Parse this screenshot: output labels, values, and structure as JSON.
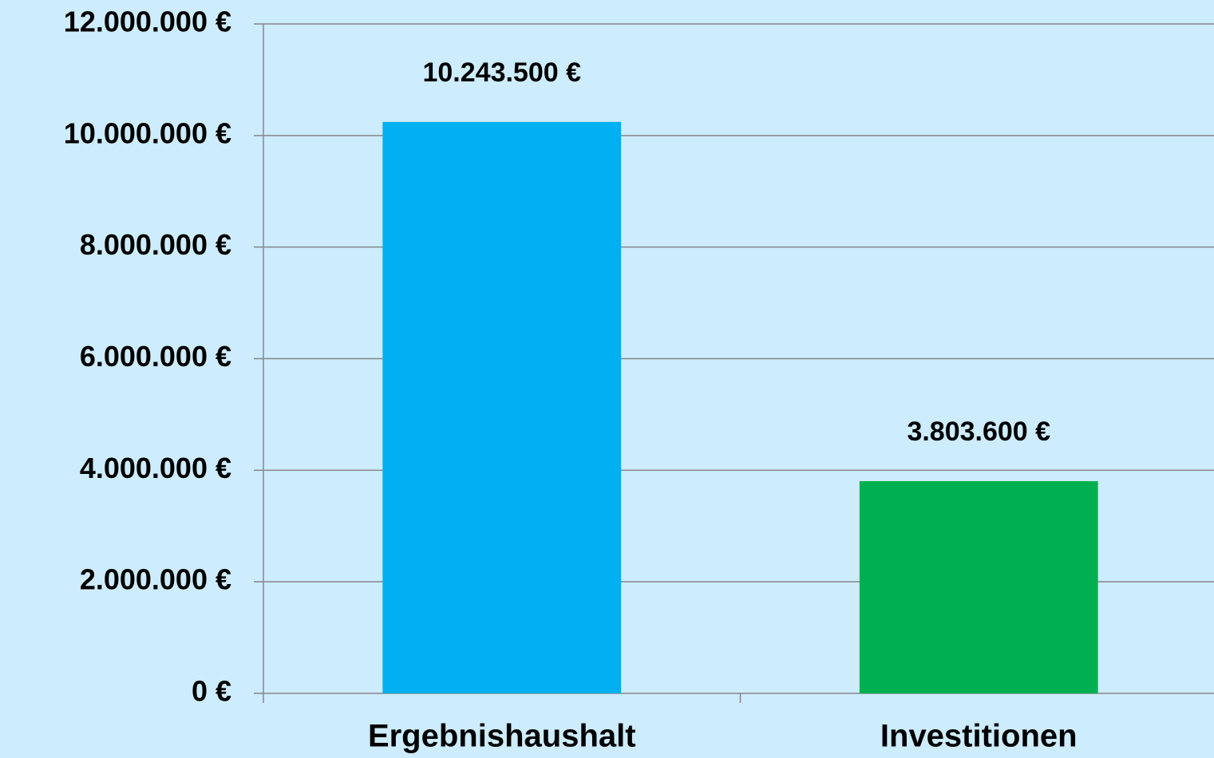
{
  "chart_data": {
    "type": "bar",
    "categories": [
      "Ergebnishaushalt",
      "Investitionen"
    ],
    "values": [
      10243500,
      3803600
    ],
    "value_labels": [
      "10.243.500 €",
      "3.803.600 €"
    ],
    "colors": [
      "#00b0f0",
      "#00b050"
    ],
    "ylim": [
      0,
      12000000
    ],
    "yticks": [
      {
        "value": 0,
        "label": "0 €"
      },
      {
        "value": 2000000,
        "label": "2.000.000 €"
      },
      {
        "value": 4000000,
        "label": "4.000.000 €"
      },
      {
        "value": 6000000,
        "label": "6.000.000 €"
      },
      {
        "value": 8000000,
        "label": "8.000.000 €"
      },
      {
        "value": 10000000,
        "label": "10.000.000 €"
      },
      {
        "value": 12000000,
        "label": "12.000.000 €"
      }
    ],
    "grid": true
  }
}
